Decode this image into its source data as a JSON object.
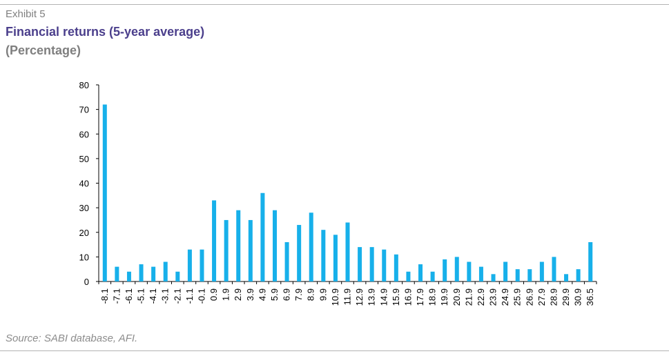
{
  "header": {
    "exhibit": "Exhibit 5",
    "title": "Financial returns (5-year average)",
    "subtitle": "(Percentage)"
  },
  "footer": {
    "source": "Source: SABI database, AFI."
  },
  "colors": {
    "bar": "#17b0ea",
    "title": "#4b3f8c",
    "muted": "#7f7f7f"
  },
  "chart_data": {
    "type": "bar",
    "title": "Financial returns (5-year average)",
    "subtitle": "(Percentage)",
    "xlabel": "",
    "ylabel": "",
    "ylim": [
      0,
      80
    ],
    "yticks": [
      0,
      10,
      20,
      30,
      40,
      50,
      60,
      70,
      80
    ],
    "grid": false,
    "legend": "none",
    "categories": [
      "-8.1",
      "-7.1",
      "-6.1",
      "-5.1",
      "-4.1",
      "-3.1",
      "-2.1",
      "-1.1",
      "-0.1",
      "0.9",
      "1.9",
      "2.9",
      "3.9",
      "4.9",
      "5.9",
      "6.9",
      "7.9",
      "8.9",
      "9.9",
      "10.9",
      "11.9",
      "12.9",
      "13.9",
      "14.9",
      "15.9",
      "16.9",
      "17.9",
      "18.9",
      "19.9",
      "20.9",
      "21.9",
      "22.9",
      "23.9",
      "24.9",
      "25.9",
      "26.9",
      "27.9",
      "28.9",
      "29.9",
      "30.9",
      "36.5"
    ],
    "values": [
      72,
      6,
      4,
      7,
      6,
      8,
      4,
      13,
      13,
      33,
      25,
      29,
      25,
      36,
      29,
      16,
      23,
      28,
      21,
      19,
      24,
      14,
      14,
      13,
      11,
      4,
      7,
      4,
      9,
      10,
      8,
      6,
      3,
      8,
      5,
      5,
      8,
      10,
      3,
      5,
      16
    ]
  }
}
